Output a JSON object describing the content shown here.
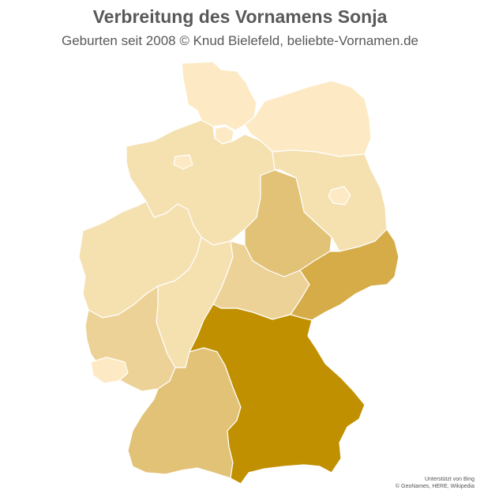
{
  "header": {
    "title": "Verbreitung des Vornamens Sonja",
    "subtitle": "Geburten seit 2008  © Knud Bielefeld, beliebte-Vornamen.de"
  },
  "map": {
    "colors": {
      "very_light": "#fdeac4",
      "light": "#f5e0b0",
      "medium_light": "#ecd296",
      "medium": "#e2c276",
      "medium_dark": "#d5ac48",
      "dark": "#c19000"
    },
    "regions": [
      {
        "id": "schleswig-holstein",
        "level": "very_light"
      },
      {
        "id": "hamburg",
        "level": "very_light"
      },
      {
        "id": "mecklenburg-vorpommern",
        "level": "very_light"
      },
      {
        "id": "bremen",
        "level": "very_light"
      },
      {
        "id": "niedersachsen",
        "level": "light"
      },
      {
        "id": "berlin",
        "level": "very_light"
      },
      {
        "id": "brandenburg",
        "level": "light"
      },
      {
        "id": "nordrhein-westfalen",
        "level": "light"
      },
      {
        "id": "sachsen-anhalt",
        "level": "medium"
      },
      {
        "id": "hessen",
        "level": "light"
      },
      {
        "id": "thueringen",
        "level": "medium_light"
      },
      {
        "id": "sachsen",
        "level": "medium_dark"
      },
      {
        "id": "rheinland-pfalz",
        "level": "medium_light"
      },
      {
        "id": "saarland",
        "level": "very_light"
      },
      {
        "id": "baden-wuerttemberg",
        "level": "medium"
      },
      {
        "id": "bayern",
        "level": "dark"
      }
    ]
  },
  "credit": {
    "line1": "Unterstützt von Bing",
    "line2": "© GeoNames, HERE, Wikipedia"
  }
}
